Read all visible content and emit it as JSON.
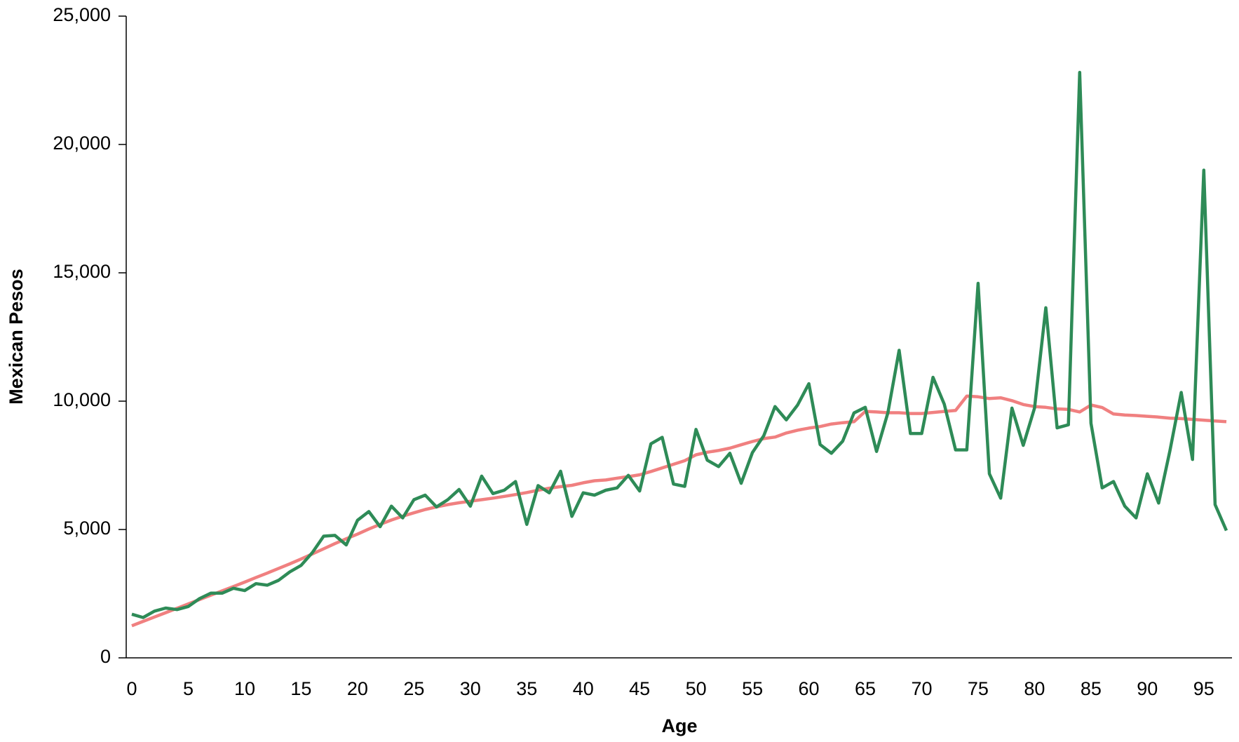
{
  "chart_data": {
    "type": "line",
    "x_label": "Age",
    "y_label": "Mexican Pesos",
    "x": [
      0,
      1,
      2,
      3,
      4,
      5,
      6,
      7,
      8,
      9,
      10,
      11,
      12,
      13,
      14,
      15,
      16,
      17,
      18,
      19,
      20,
      21,
      22,
      23,
      24,
      25,
      26,
      27,
      28,
      29,
      30,
      31,
      32,
      33,
      34,
      35,
      36,
      37,
      38,
      39,
      40,
      41,
      42,
      43,
      44,
      45,
      46,
      47,
      48,
      49,
      50,
      51,
      52,
      53,
      54,
      55,
      56,
      57,
      58,
      59,
      60,
      61,
      62,
      63,
      64,
      65,
      66,
      67,
      68,
      69,
      70,
      71,
      72,
      73,
      74,
      75,
      76,
      77,
      78,
      79,
      80,
      81,
      82,
      83,
      84,
      85,
      86,
      87,
      88,
      89,
      90,
      91,
      92,
      93,
      94,
      95,
      96,
      97
    ],
    "xlim": [
      -0.5,
      97.5
    ],
    "xticks": [
      0,
      5,
      10,
      15,
      20,
      25,
      30,
      35,
      40,
      45,
      50,
      55,
      60,
      65,
      70,
      75,
      80,
      85,
      90,
      95
    ],
    "ylim": [
      0,
      25000
    ],
    "yticks": [
      0,
      {
        "value": 5000,
        "label": "5,000"
      },
      {
        "value": 10000,
        "label": "10,000"
      },
      {
        "value": 15000,
        "label": "15,000"
      },
      {
        "value": 20000,
        "label": "20,000"
      },
      {
        "value": 25000,
        "label": "25,000"
      }
    ],
    "series": [
      {
        "color": "#f08080",
        "values": [
          1250,
          1420,
          1590,
          1760,
          1930,
          2100,
          2270,
          2440,
          2610,
          2780,
          2950,
          3130,
          3300,
          3480,
          3660,
          3850,
          4050,
          4250,
          4450,
          4640,
          4820,
          5020,
          5200,
          5370,
          5520,
          5650,
          5780,
          5880,
          5970,
          6040,
          6100,
          6160,
          6220,
          6290,
          6360,
          6440,
          6530,
          6610,
          6670,
          6720,
          6820,
          6900,
          6930,
          7000,
          7060,
          7130,
          7260,
          7400,
          7540,
          7680,
          7910,
          8010,
          8080,
          8170,
          8300,
          8430,
          8540,
          8600,
          8760,
          8870,
          8950,
          9010,
          9110,
          9160,
          9200,
          9600,
          9580,
          9550,
          9550,
          9520,
          9520,
          9560,
          9600,
          9640,
          10200,
          10170,
          10100,
          10130,
          10020,
          9870,
          9790,
          9760,
          9700,
          9680,
          9580,
          9850,
          9750,
          9500,
          9460,
          9440,
          9410,
          9380,
          9340,
          9320,
          9290,
          9260,
          9230,
          9200
        ]
      },
      {
        "color": "#2e8b57",
        "values": [
          1700,
          1570,
          1820,
          1940,
          1880,
          2000,
          2310,
          2520,
          2520,
          2710,
          2620,
          2890,
          2830,
          3020,
          3350,
          3600,
          4100,
          4740,
          4770,
          4400,
          5360,
          5700,
          5110,
          5910,
          5450,
          6160,
          6340,
          5880,
          6160,
          6560,
          5910,
          7080,
          6400,
          6530,
          6870,
          5200,
          6710,
          6430,
          7270,
          5510,
          6430,
          6340,
          6530,
          6620,
          7110,
          6500,
          8340,
          8590,
          6770,
          6680,
          8900,
          7700,
          7450,
          7970,
          6800,
          8000,
          8650,
          9790,
          9270,
          9850,
          10680,
          8310,
          7970,
          8440,
          9540,
          9760,
          8040,
          9540,
          11980,
          8740,
          8740,
          10930,
          9880,
          8100,
          8100,
          14590,
          7170,
          6220,
          9730,
          8280,
          9730,
          13640,
          8960,
          9080,
          22810,
          9140,
          6620,
          6870,
          5910,
          5450,
          7170,
          6030,
          8070,
          10340,
          7730,
          19000,
          5970,
          4960
        ]
      }
    ]
  }
}
